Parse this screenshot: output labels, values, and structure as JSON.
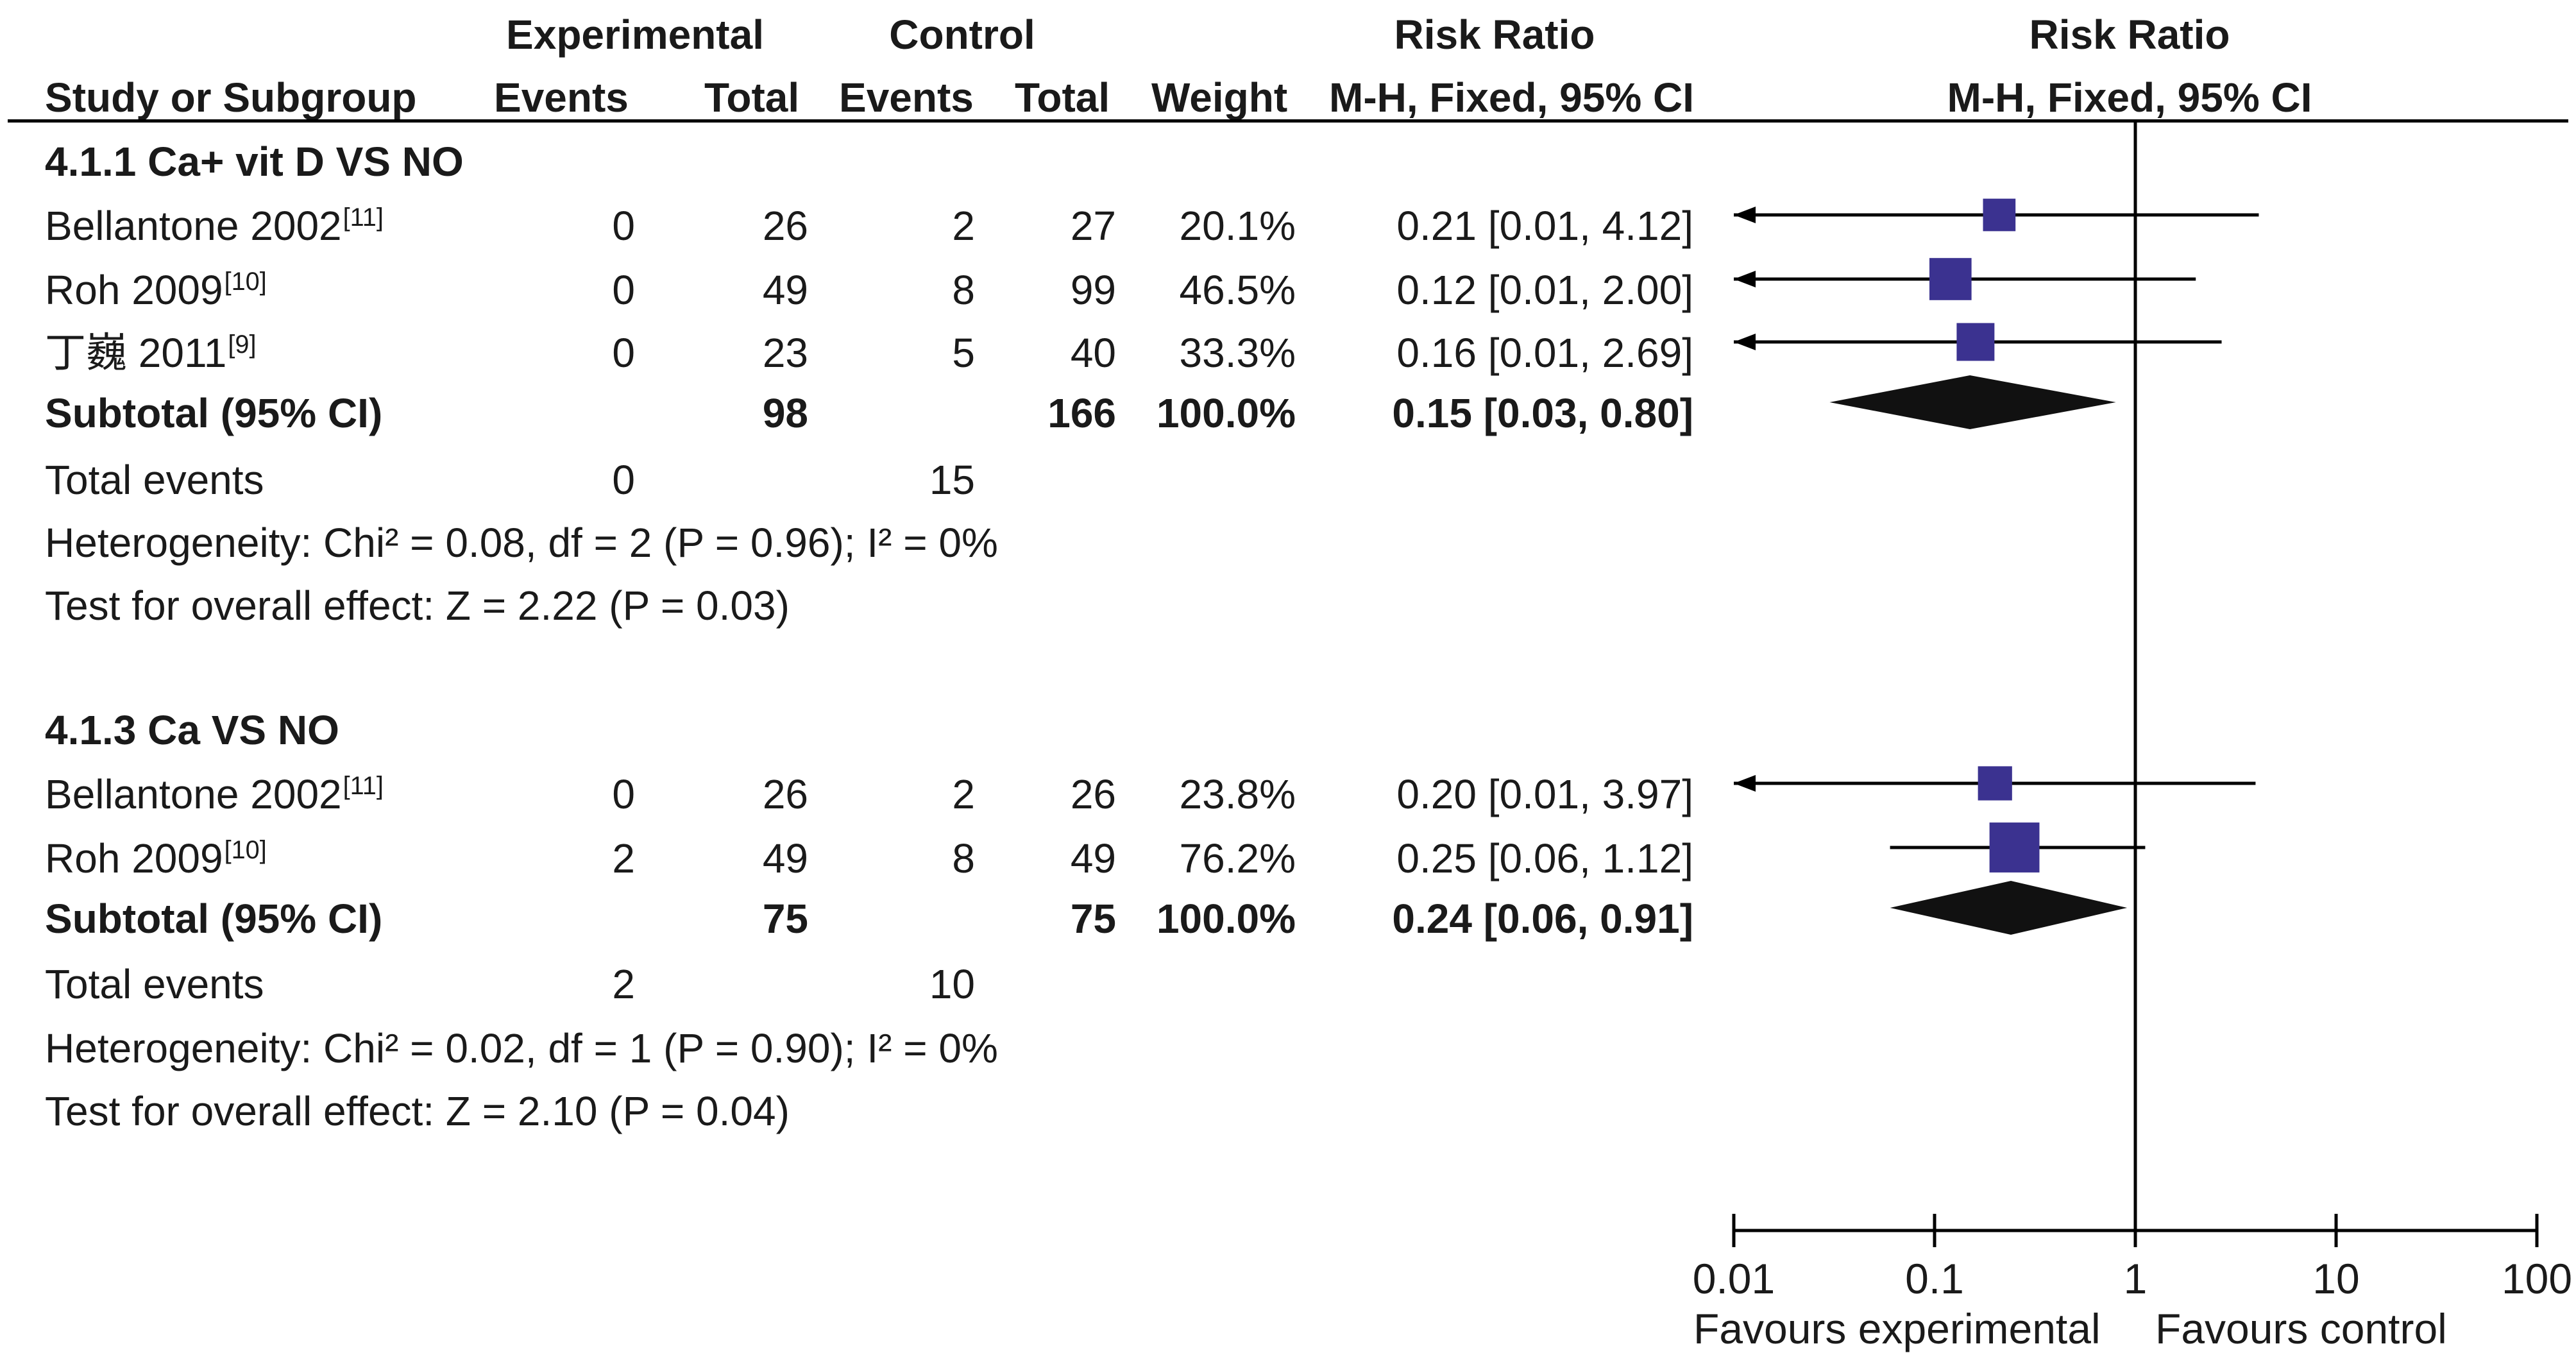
{
  "header": {
    "experimental": "Experimental",
    "control": "Control",
    "risk_ratio_left": "Risk Ratio",
    "risk_ratio_right": "Risk Ratio",
    "study_col": "Study or Subgroup",
    "exp_events": "Events",
    "exp_total": "Total",
    "ctl_events": "Events",
    "ctl_total": "Total",
    "weight": "Weight",
    "method_left": "M-H, Fixed, 95% CI",
    "method_right": "M-H, Fixed, 95% CI"
  },
  "subgroups": [
    {
      "title": "4.1.1 Ca+ vit D VS NO",
      "studies": [
        {
          "name": "Bellantone 2002",
          "ref": "[11]",
          "exp_events": "0",
          "exp_total": "26",
          "ctl_events": "2",
          "ctl_total": "27",
          "weight": "20.1%",
          "ci_text": "0.21 [0.01, 4.12]"
        },
        {
          "name": "Roh 2009",
          "ref": "[10]",
          "exp_events": "0",
          "exp_total": "49",
          "ctl_events": "8",
          "ctl_total": "99",
          "weight": "46.5%",
          "ci_text": "0.12 [0.01, 2.00]"
        },
        {
          "name": "丁巍 2011",
          "ref": "[9]",
          "exp_events": "0",
          "exp_total": "23",
          "ctl_events": "5",
          "ctl_total": "40",
          "weight": "33.3%",
          "ci_text": "0.16 [0.01, 2.69]"
        }
      ],
      "subtotal": {
        "label": "Subtotal (95% CI)",
        "exp_total": "98",
        "ctl_total": "166",
        "weight": "100.0%",
        "ci_text": "0.15 [0.03, 0.80]"
      },
      "total_events": {
        "label": "Total events",
        "exp": "0",
        "ctl": "15"
      },
      "heterogeneity": "Heterogeneity: Chi² = 0.08, df = 2 (P = 0.96); I² = 0%",
      "overall": "Test for overall effect: Z = 2.22 (P = 0.03)"
    },
    {
      "title": "4.1.3 Ca VS NO",
      "studies": [
        {
          "name": "Bellantone 2002",
          "ref": "[11]",
          "exp_events": "0",
          "exp_total": "26",
          "ctl_events": "2",
          "ctl_total": "26",
          "weight": "23.8%",
          "ci_text": "0.20 [0.01, 3.97]"
        },
        {
          "name": "Roh 2009",
          "ref": "[10]",
          "exp_events": "2",
          "exp_total": "49",
          "ctl_events": "8",
          "ctl_total": "49",
          "weight": "76.2%",
          "ci_text": "0.25 [0.06, 1.12]"
        }
      ],
      "subtotal": {
        "label": "Subtotal (95% CI)",
        "exp_total": "75",
        "ctl_total": "75",
        "weight": "100.0%",
        "ci_text": "0.24 [0.06, 0.91]"
      },
      "total_events": {
        "label": "Total events",
        "exp": "2",
        "ctl": "10"
      },
      "heterogeneity": "Heterogeneity: Chi² = 0.02, df = 1 (P = 0.90); I² = 0%",
      "overall": "Test for overall effect: Z = 2.10 (P = 0.04)"
    }
  ],
  "axis": {
    "ticks": [
      "0.01",
      "0.1",
      "1",
      "10",
      "100"
    ],
    "favours_left": "Favours experimental",
    "favours_right": "Favours control"
  },
  "chart_data": {
    "type": "forest",
    "scale": "log",
    "xlim": [
      0.01,
      100
    ],
    "ticks": [
      0.01,
      0.1,
      1,
      10,
      100
    ],
    "colors": {
      "study_marker": "#3b3290",
      "diamond": "#111111",
      "lines": "#000000"
    },
    "subgroups": [
      {
        "name": "4.1.1 Ca+ vit D VS NO",
        "studies": [
          {
            "name": "Bellantone 2002",
            "rr": 0.21,
            "lo": 0.01,
            "hi": 4.12,
            "weight": 20.1
          },
          {
            "name": "Roh 2009",
            "rr": 0.12,
            "lo": 0.01,
            "hi": 2.0,
            "weight": 46.5
          },
          {
            "name": "丁巍 2011",
            "rr": 0.16,
            "lo": 0.01,
            "hi": 2.69,
            "weight": 33.3
          }
        ],
        "subtotal": {
          "rr": 0.15,
          "lo": 0.03,
          "hi": 0.8
        }
      },
      {
        "name": "4.1.3 Ca VS NO",
        "studies": [
          {
            "name": "Bellantone 2002",
            "rr": 0.2,
            "lo": 0.01,
            "hi": 3.97,
            "weight": 23.8
          },
          {
            "name": "Roh 2009",
            "rr": 0.25,
            "lo": 0.06,
            "hi": 1.12,
            "weight": 76.2
          }
        ],
        "subtotal": {
          "rr": 0.24,
          "lo": 0.06,
          "hi": 0.91
        }
      }
    ]
  }
}
